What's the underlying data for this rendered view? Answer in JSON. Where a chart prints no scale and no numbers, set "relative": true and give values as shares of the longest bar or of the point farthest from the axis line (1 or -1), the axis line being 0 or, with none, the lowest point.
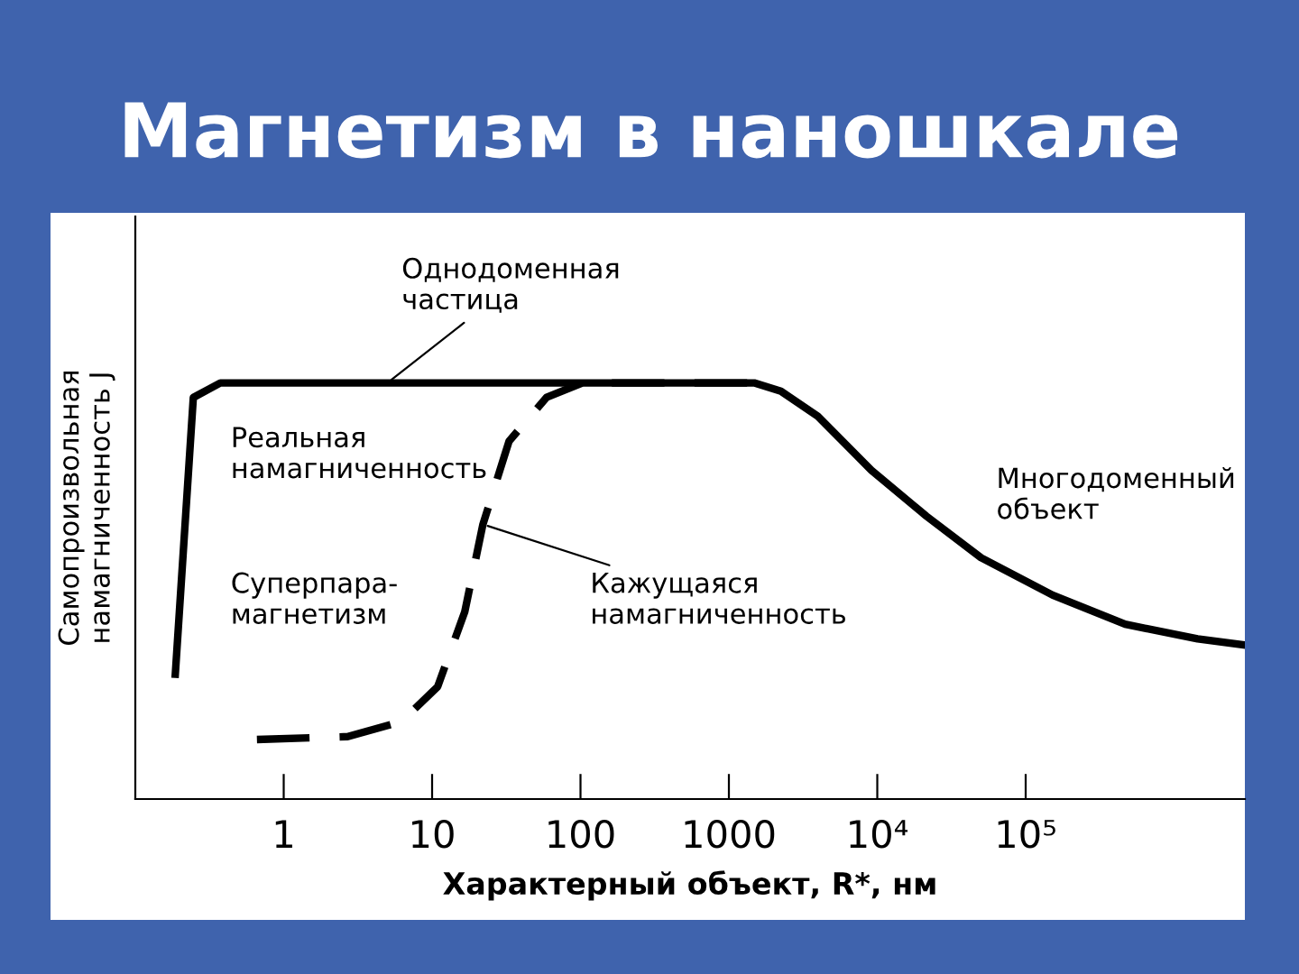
{
  "chart_data": {
    "type": "line",
    "title": "Магнетизм в наношкале",
    "xlabel": "Характерный объект, R*, нм",
    "ylabel": "Самопроизвольная\nнамагниченность J",
    "relative": true,
    "log": "x",
    "xlim": [
      0.1,
      3000000
    ],
    "xticks": [
      1,
      10,
      100,
      1000,
      {
        "value": 10000,
        "label": "10⁴"
      },
      {
        "value": 100000,
        "label": "10⁵"
      }
    ],
    "tick_labels": "x",
    "grid": false,
    "legend": false,
    "marker": "none",
    "series": [
      {
        "color": "#000000",
        "line_style": "solid",
        "x": [
          0.186,
          0.246,
          0.374,
          1480,
          2240,
          3970,
          9130,
          21400,
          50000,
          152000,
          468000,
          1440000,
          3000000
        ],
        "values": [
          0.3,
          0.965,
          1.0,
          1.0,
          0.98,
          0.92,
          0.79,
          0.68,
          0.58,
          0.49,
          0.42,
          0.385,
          0.37
        ]
      },
      {
        "color": "#000000",
        "line_style": "dashed",
        "x": [
          0.66,
          2.7,
          6.2,
          10.9,
          16.6,
          22,
          33,
          59,
          103,
          1480
        ],
        "values": [
          0.143,
          0.15,
          0.186,
          0.27,
          0.45,
          0.66,
          0.86,
          0.965,
          1.0,
          1.0
        ]
      }
    ],
    "annotations": [
      {
        "text": "Однодоменная\nчастица",
        "x": 5,
        "y": 1.0
      },
      "Реальная\nнамагниченность",
      "Многодоменный\nобъект",
      "Суперпара-\nмагнетизм",
      {
        "text": "Кажущаяся\nнамагниченность",
        "x": 22,
        "y": 0.66
      }
    ]
  }
}
